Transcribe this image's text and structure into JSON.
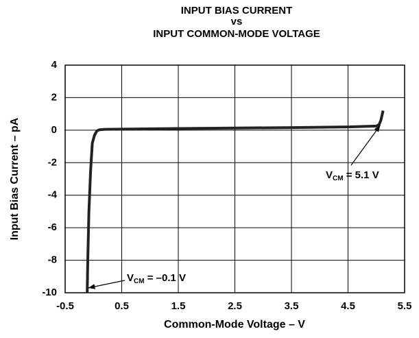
{
  "chart_data": {
    "type": "line",
    "title": [
      "INPUT BIAS CURRENT",
      "vs",
      "INPUT COMMON-MODE VOLTAGE"
    ],
    "xlabel": "Common-Mode Voltage – V",
    "ylabel": "Input Bias Current – pA",
    "xlim": [
      -0.5,
      5.5
    ],
    "xticks": [
      -0.5,
      0.5,
      1.5,
      2.5,
      3.5,
      4.5,
      5.5
    ],
    "ylim": [
      -10,
      4
    ],
    "yticks": [
      4,
      2,
      0,
      -2,
      -4,
      -6,
      -8,
      -10
    ],
    "grid": true,
    "series": [
      {
        "color": "#222222",
        "x": [
          -0.11,
          -0.1,
          -0.08,
          -0.05,
          -0.02,
          0.02,
          0.06,
          0.1,
          0.2,
          0.5,
          1.5,
          2.5,
          3.5,
          4.5,
          5.0,
          5.05,
          5.08,
          5.1,
          5.12
        ],
        "values": [
          -10,
          -8,
          -5,
          -2.5,
          -0.8,
          -0.3,
          -0.05,
          0.02,
          0.05,
          0.06,
          0.1,
          0.13,
          0.16,
          0.2,
          0.25,
          0.35,
          0.6,
          0.9,
          1.2
        ]
      }
    ],
    "annotations": [
      {
        "text": "V",
        "sub": "CM",
        "rest": " = 5.1 V",
        "x": 5.07,
        "y": 0.3
      },
      {
        "text": "V",
        "sub": "CM",
        "rest": " = –0.1 V",
        "x": -0.09,
        "y": -9.7
      }
    ]
  }
}
